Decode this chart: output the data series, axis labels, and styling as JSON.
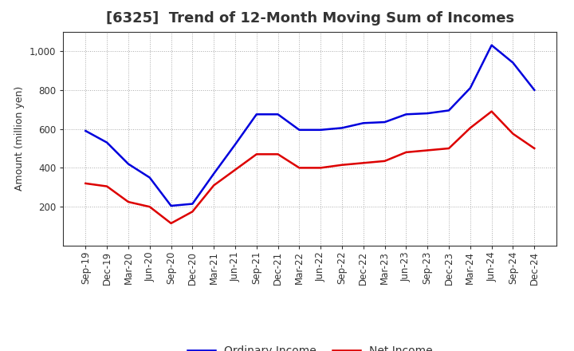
{
  "title": "[6325]  Trend of 12-Month Moving Sum of Incomes",
  "ylabel": "Amount (million yen)",
  "background_color": "#ffffff",
  "plot_bg_color": "#ffffff",
  "grid_color": "#aaaaaa",
  "x_labels": [
    "Sep-19",
    "Dec-19",
    "Mar-20",
    "Jun-20",
    "Sep-20",
    "Dec-20",
    "Mar-21",
    "Jun-21",
    "Sep-21",
    "Dec-21",
    "Mar-22",
    "Jun-22",
    "Sep-22",
    "Dec-22",
    "Mar-23",
    "Jun-23",
    "Sep-23",
    "Dec-23",
    "Mar-24",
    "Jun-24",
    "Sep-24",
    "Dec-24"
  ],
  "ordinary_income": [
    590,
    530,
    420,
    350,
    205,
    215,
    370,
    520,
    675,
    675,
    595,
    595,
    605,
    630,
    635,
    675,
    680,
    695,
    810,
    1030,
    940,
    800
  ],
  "net_income": [
    320,
    305,
    225,
    200,
    115,
    175,
    310,
    390,
    470,
    470,
    400,
    400,
    415,
    425,
    435,
    480,
    490,
    500,
    605,
    690,
    575,
    500
  ],
  "ordinary_color": "#0000dd",
  "net_color": "#dd0000",
  "ylim": [
    0,
    1100
  ],
  "yticks": [
    200,
    400,
    600,
    800,
    1000
  ],
  "ytick_labels": [
    "200",
    "400",
    "600",
    "800",
    "1,000"
  ],
  "line_width": 1.8,
  "title_fontsize": 13,
  "title_color": "#333333",
  "tick_fontsize": 8.5,
  "ylabel_fontsize": 9,
  "legend_labels": [
    "Ordinary Income",
    "Net Income"
  ],
  "legend_fontsize": 10
}
